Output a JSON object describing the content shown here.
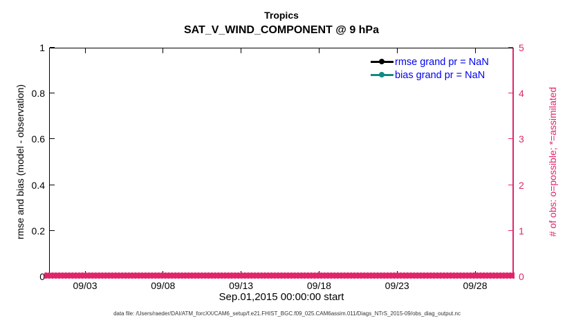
{
  "title": {
    "line1": "Tropics",
    "line2": "SAT_V_WIND_COMPONENT @ 9 hPa"
  },
  "axes": {
    "left": {
      "label": "rmse and bias (model - observation)",
      "ticks": [
        "0",
        "0.2",
        "0.4",
        "0.6",
        "0.8",
        "1"
      ],
      "range": [
        0,
        1
      ]
    },
    "right": {
      "label": "# of obs: o=possible; *=assimilated",
      "ticks": [
        "0",
        "1",
        "2",
        "3",
        "4",
        "5"
      ],
      "range": [
        0,
        5
      ]
    },
    "x": {
      "label": "Sep.01,2015 00:00:00 start",
      "ticks": [
        "09/03",
        "09/08",
        "09/13",
        "09/18",
        "09/23",
        "09/28"
      ]
    }
  },
  "legend": {
    "items": [
      {
        "label": "rmse grand pr = NaN",
        "color": "#000000"
      },
      {
        "label": "bias grand pr = NaN",
        "color": "#0f8b82"
      }
    ],
    "text_color": "#0000ee"
  },
  "obs_markers": {
    "glyph": "asterisk",
    "count": 140,
    "value": 0,
    "color": "#e0256b"
  },
  "caption": "data file: /Users/raeder/DAI/ATM_forcXX/CAM6_setup/f.e21.FHIST_BGC.f09_025.CAM6assim.011/Diags_NTrS_2015-09/obs_diag_output.nc",
  "colors": {
    "obs_pink": "#e0256b",
    "axis_black": "#000000",
    "legend_blue": "#0000ee",
    "bias_teal": "#0f8b82",
    "caption_gray": "#333333"
  },
  "chart_data": {
    "type": "line",
    "title": "Tropics",
    "subtitle": "SAT_V_WIND_COMPONENT @ 9 hPa",
    "xlabel": "Sep.01,2015 00:00:00 start",
    "x_ticks": [
      "09/03",
      "09/08",
      "09/13",
      "09/18",
      "09/23",
      "09/28"
    ],
    "ylabel_left": "rmse and bias (model - observation)",
    "ylim_left": [
      0,
      1
    ],
    "yticks_left": [
      0,
      0.2,
      0.4,
      0.6,
      0.8,
      1
    ],
    "ylabel_right": "# of obs: o=possible; *=assimilated",
    "ylim_right": [
      0,
      5
    ],
    "yticks_right": [
      0,
      1,
      2,
      3,
      4,
      5
    ],
    "grid": false,
    "legend_position": "northeast, no box",
    "series": [
      {
        "name": "rmse grand pr = NaN",
        "axis": "left",
        "values": "NaN - no curve drawn"
      },
      {
        "name": "bias grand pr = NaN",
        "axis": "left",
        "values": "NaN - no curve drawn"
      },
      {
        "name": "# of obs assimilated (* markers)",
        "axis": "right",
        "values": "0 at every time step Sep 01 - Sep 30 2015 (dense pink asterisk band along y=0)"
      }
    ]
  }
}
